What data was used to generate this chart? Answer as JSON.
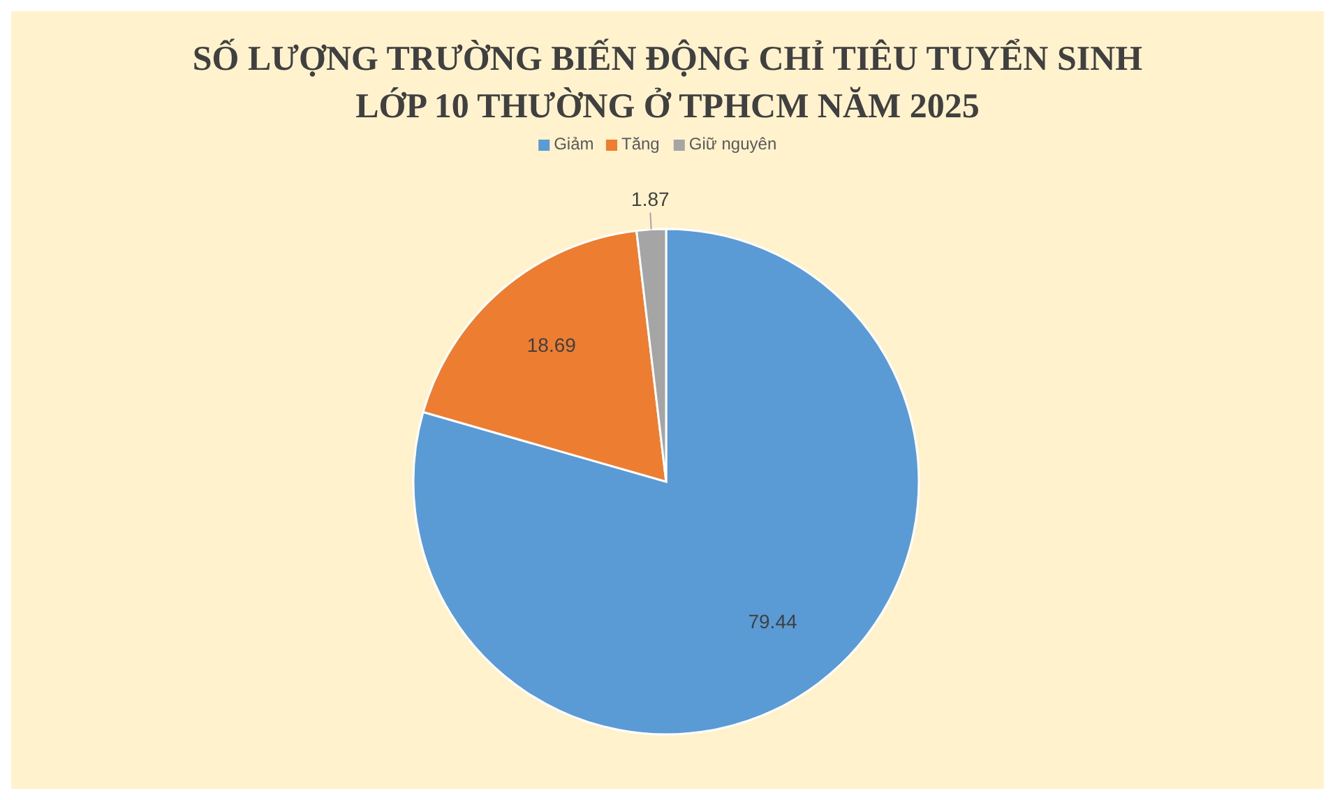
{
  "chart_data": {
    "type": "pie",
    "title": "SỐ LƯỢNG TRƯỜNG BIẾN ĐỘNG CHỈ TIÊU TUYỂN SINH\nLỚP 10 THƯỜNG Ở TPHCM NĂM 2025",
    "categories": [
      "Giảm",
      "Tăng",
      "Giữ nguyên"
    ],
    "values": [
      79.44,
      18.69,
      1.87
    ],
    "colors": [
      "#5b9bd5",
      "#ed7d31",
      "#a5a5a5"
    ],
    "data_labels": true,
    "legend": "top"
  }
}
